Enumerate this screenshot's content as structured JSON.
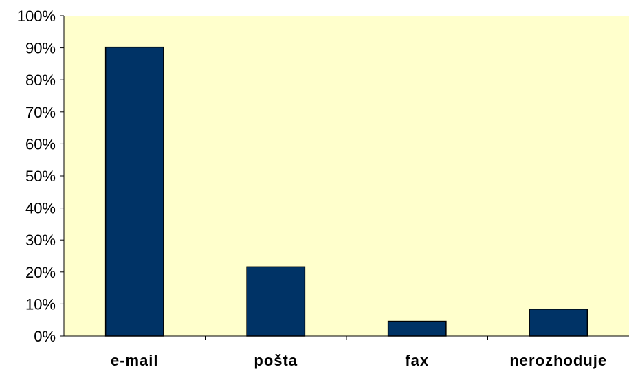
{
  "chart_data": {
    "type": "bar",
    "categories": [
      "e-mail",
      "pošta",
      "fax",
      "nerozhoduje"
    ],
    "values": [
      90.2,
      21.6,
      4.6,
      8.4
    ],
    "value_format": "percent",
    "title": "",
    "xlabel": "",
    "ylabel": "",
    "ylim": [
      0,
      100
    ],
    "y_ticks": [
      "0%",
      "10%",
      "20%",
      "30%",
      "40%",
      "50%",
      "60%",
      "70%",
      "80%",
      "90%",
      "100%"
    ],
    "grid": false,
    "legend": "none",
    "colors": {
      "plot_background": "#FFFFCC",
      "bar_fill": "#003366",
      "bar_stroke": "#000000",
      "axis": "#000000"
    }
  }
}
